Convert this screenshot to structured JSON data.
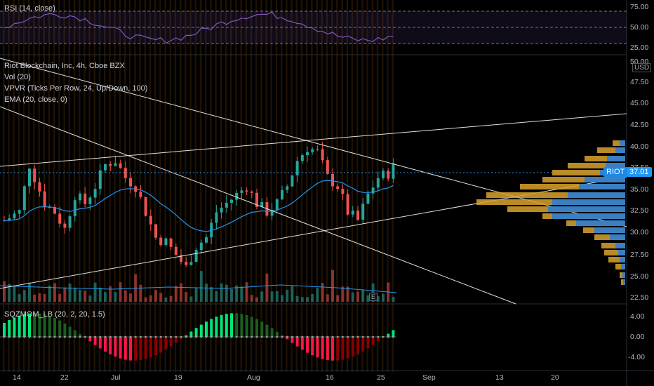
{
  "rsi_pane": {
    "legend": "RSI (14, close)",
    "levels": [
      "75.00",
      "50.00",
      "25.00"
    ]
  },
  "main_pane": {
    "legend": [
      "Riot Blockchain, Inc, 4h, Cboe BZX",
      "Vol (20)",
      "VPVR (Ticks Per Row, 24, Up/Down, 100)",
      "EMA (20, close, 0)"
    ],
    "price_labels": [
      "50.00",
      "47.50",
      "45.00",
      "42.50",
      "40.00",
      "37.50",
      "35.00",
      "32.50",
      "30.00",
      "27.50",
      "25.00",
      "22.50"
    ],
    "currency": "USD",
    "symbol_tag": "RIOT",
    "last_price": "37.01",
    "earnings_badge": "E"
  },
  "sqz_pane": {
    "legend": "SQZMOM_LB (20, 2, 20, 1.5)",
    "levels": [
      "4.00",
      "0.00",
      "-4.00"
    ]
  },
  "time_axis": [
    "14",
    "22",
    "Jul",
    "19",
    "Aug",
    "16",
    "25",
    "Sep",
    "13",
    "20"
  ],
  "colors": {
    "up": "#26a69a",
    "down": "#ef5350",
    "ema": "#2196f3",
    "rsi": "#7e57c2",
    "vpvr_up": "#2d7dd2",
    "vpvr_down": "#d9a22c",
    "sqz_up_strong": "#00e676",
    "sqz_up_weak": "#1b5e20",
    "sqz_down_strong": "#ff1744",
    "sqz_down_weak": "#8b0000",
    "session_stripe": "#3a2106"
  }
}
